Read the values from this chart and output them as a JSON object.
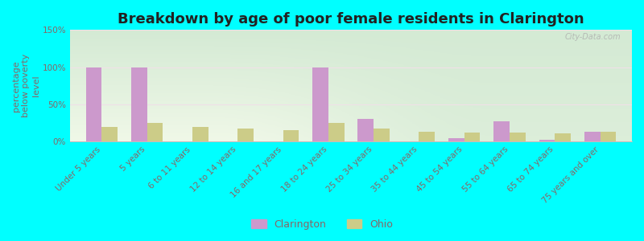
{
  "title": "Breakdown by age of poor female residents in Clarington",
  "ylabel": "percentage\nbelow poverty\nlevel",
  "categories": [
    "Under 5 years",
    "5 years",
    "6 to 11 years",
    "12 to 14 years",
    "16 and 17 years",
    "18 to 24 years",
    "25 to 34 years",
    "35 to 44 years",
    "45 to 54 years",
    "55 to 64 years",
    "65 to 74 years",
    "75 years and over"
  ],
  "clarington": [
    100,
    100,
    0,
    0,
    0,
    100,
    30,
    0,
    5,
    27,
    2,
    13
  ],
  "ohio": [
    20,
    25,
    20,
    17,
    15,
    25,
    17,
    13,
    12,
    12,
    11,
    13
  ],
  "clarington_color": "#cc99cc",
  "ohio_color": "#cccc88",
  "bg_color": "#00ffff",
  "plot_bg_tl": "#d4ead4",
  "plot_bg_br": "#f0f8e8",
  "ylim": [
    0,
    150
  ],
  "yticks": [
    0,
    50,
    100,
    150
  ],
  "ytick_labels": [
    "0%",
    "50%",
    "100%",
    "150%"
  ],
  "bar_width": 0.35,
  "title_fontsize": 13,
  "label_fontsize": 8,
  "tick_fontsize": 7.5,
  "tick_color": "#886666",
  "legend_labels": [
    "Clarington",
    "Ohio"
  ],
  "watermark": "City-Data.com"
}
